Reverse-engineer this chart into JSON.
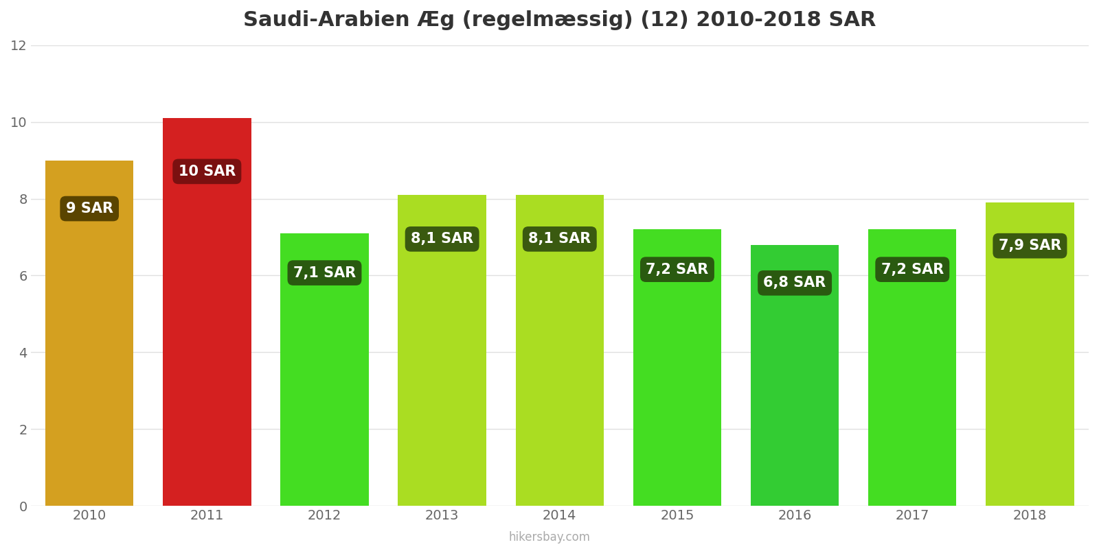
{
  "title": "Saudi-Arabien Æg (regelmæssig) (12) 2010-2018 SAR",
  "years": [
    2010,
    2011,
    2012,
    2013,
    2014,
    2015,
    2016,
    2017,
    2018
  ],
  "values": [
    9.0,
    10.1,
    7.1,
    8.1,
    8.1,
    7.2,
    6.8,
    7.2,
    7.9
  ],
  "labels": [
    "9 SAR",
    "10 SAR",
    "7,1 SAR",
    "8,1 SAR",
    "8,1 SAR",
    "7,2 SAR",
    "6,8 SAR",
    "7,2 SAR",
    "7,9 SAR"
  ],
  "bar_colors": [
    "#D4A020",
    "#D42020",
    "#44DD22",
    "#AADD22",
    "#AADD22",
    "#44DD22",
    "#33CC33",
    "#44DD22",
    "#AADD22"
  ],
  "label_box_colors": [
    "#5A4400",
    "#7A1010",
    "#2A5A10",
    "#3A5A10",
    "#3A5A10",
    "#2A5A10",
    "#2A5A10",
    "#2A5A10",
    "#3A5A10"
  ],
  "ylim": [
    0,
    12
  ],
  "yticks": [
    0,
    2,
    4,
    6,
    8,
    10,
    12
  ],
  "background_color": "#ffffff",
  "grid_color": "#e0e0e0",
  "footer": "hikersbay.com",
  "title_fontsize": 22,
  "label_fontsize": 15,
  "tick_fontsize": 14,
  "bar_width": 0.75
}
